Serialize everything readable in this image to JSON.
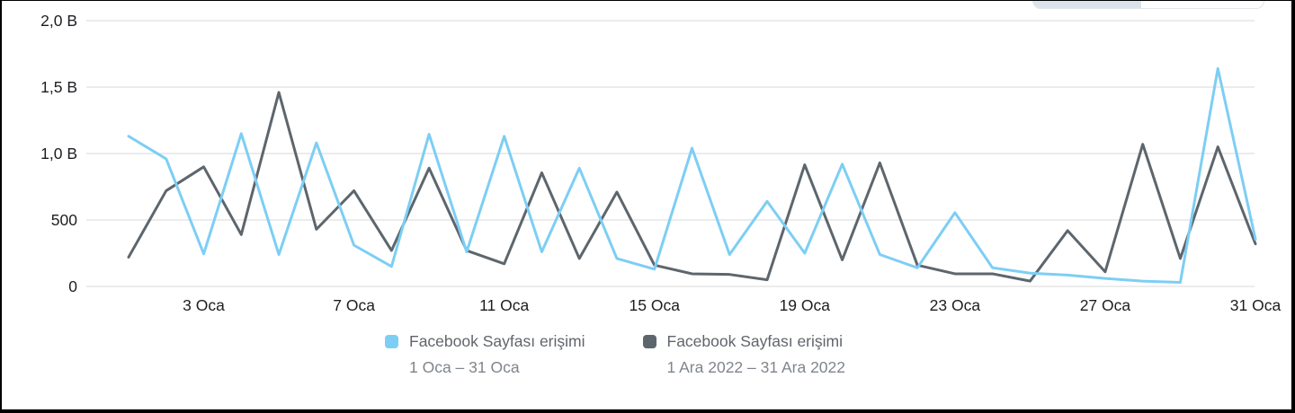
{
  "colors": {
    "series_blue": "#7dcef4",
    "series_gray": "#5d666d",
    "gridline": "#e5e6e7",
    "axis_text": "#1c1e21",
    "legend_label": "#60656c",
    "legend_period": "#7f858c",
    "toggle_selected_fill": "#dce3ea",
    "toggle_border": "#e3e7ec",
    "frame": "#000000"
  },
  "toggle": {
    "note": "partially visible segmented control cropped at top edge",
    "selected_segment": "left"
  },
  "legend": {
    "items": [
      {
        "label": "Facebook Sayfası erişimi",
        "period": "1 Oca – 31 Oca",
        "color": "#7dcef4"
      },
      {
        "label": "Facebook Sayfası erişimi",
        "period": "1 Ara 2022 – 31 Ara 2022",
        "color": "#5d666d"
      }
    ]
  },
  "chart_data": {
    "type": "line",
    "title": "",
    "xlabel": "",
    "ylabel": "",
    "grid": true,
    "legend_position": "bottom",
    "ylim": [
      0,
      2000
    ],
    "unit_note": "B = bin (thousand), Turkish locale",
    "y_ticks": [
      {
        "value": 0,
        "label": "0"
      },
      {
        "value": 500,
        "label": "500"
      },
      {
        "value": 1000,
        "label": "1,0 B"
      },
      {
        "value": 1500,
        "label": "1,5 B"
      },
      {
        "value": 2000,
        "label": "2,0 B"
      }
    ],
    "x_ticks": [
      {
        "day": 3,
        "label": "3 Oca"
      },
      {
        "day": 7,
        "label": "7 Oca"
      },
      {
        "day": 11,
        "label": "11 Oca"
      },
      {
        "day": 15,
        "label": "15 Oca"
      },
      {
        "day": 19,
        "label": "19 Oca"
      },
      {
        "day": 23,
        "label": "23 Oca"
      },
      {
        "day": 27,
        "label": "27 Oca"
      },
      {
        "day": 31,
        "label": "31 Oca"
      }
    ],
    "days": [
      1,
      2,
      3,
      4,
      5,
      6,
      7,
      8,
      9,
      10,
      11,
      12,
      13,
      14,
      15,
      16,
      17,
      18,
      19,
      20,
      21,
      22,
      23,
      24,
      25,
      26,
      27,
      28,
      29,
      30,
      31
    ],
    "series": [
      {
        "name": "Facebook Sayfası erişimi",
        "period": "1 Oca – 31 Oca",
        "color": "#7dcef4",
        "values": [
          1130,
          960,
          245,
          1150,
          240,
          1080,
          310,
          150,
          1145,
          260,
          1130,
          260,
          890,
          210,
          130,
          1040,
          240,
          640,
          250,
          920,
          240,
          140,
          555,
          140,
          100,
          85,
          60,
          40,
          30,
          1640,
          355
        ]
      },
      {
        "name": "Facebook Sayfası erişimi",
        "period": "1 Ara 2022 – 31 Ara 2022",
        "color": "#5d666d",
        "values": [
          220,
          720,
          900,
          390,
          1460,
          430,
          720,
          270,
          890,
          270,
          170,
          855,
          210,
          710,
          160,
          95,
          90,
          50,
          915,
          200,
          930,
          160,
          95,
          95,
          40,
          420,
          110,
          1070,
          210,
          1050,
          320
        ]
      }
    ]
  }
}
